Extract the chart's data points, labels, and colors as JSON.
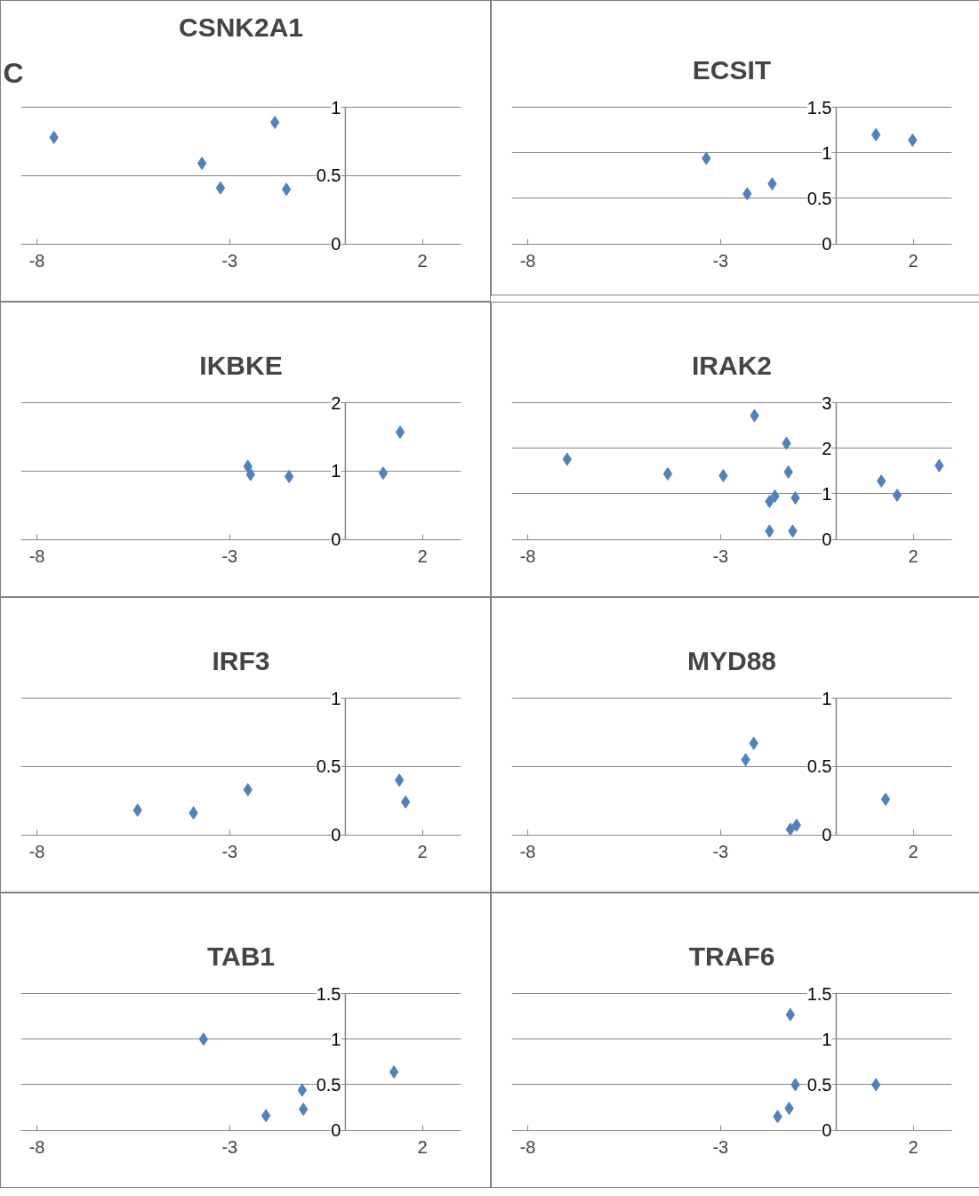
{
  "chart_data": [
    {
      "type": "scatter",
      "title": "CSNK2A1",
      "annotations": [
        "C"
      ],
      "color": "#4f81bd",
      "marker": "diamond",
      "grid": "y",
      "xlim": [
        -8,
        3
      ],
      "xticks": [
        -8,
        -3,
        2
      ],
      "ylim": [
        0,
        1
      ],
      "yticks": [
        0,
        0.5,
        1
      ],
      "x": [
        -7.56,
        -3.72,
        -3.24,
        -1.83,
        -1.53
      ],
      "values": [
        0.78,
        0.59,
        0.41,
        0.89,
        0.4
      ]
    },
    {
      "type": "scatter",
      "title": "ECSIT",
      "color": "#4f81bd",
      "marker": "diamond",
      "grid": "y",
      "xlim": [
        -8,
        3
      ],
      "xticks": [
        -8,
        -3,
        2
      ],
      "ylim": [
        0,
        1.5
      ],
      "yticks": [
        0,
        0.5,
        1,
        1.5
      ],
      "x": [
        -3.37,
        -2.31,
        -1.66,
        1.03,
        1.98
      ],
      "values": [
        0.94,
        0.55,
        0.66,
        1.2,
        1.14
      ]
    },
    {
      "type": "scatter",
      "title": "IKBKE",
      "color": "#4f81bd",
      "marker": "diamond",
      "grid": "y",
      "xlim": [
        -8,
        3
      ],
      "xticks": [
        -8,
        -3,
        2
      ],
      "ylim": [
        0,
        2
      ],
      "yticks": [
        0,
        1,
        2
      ],
      "x": [
        -2.53,
        -2.46,
        -1.46,
        0.98,
        1.42
      ],
      "values": [
        1.07,
        0.95,
        0.92,
        0.97,
        1.57
      ]
    },
    {
      "type": "scatter",
      "title": "IRAK2",
      "color": "#4f81bd",
      "marker": "diamond",
      "grid": "y",
      "xlim": [
        -8,
        3
      ],
      "xticks": [
        -8,
        -3,
        2
      ],
      "ylim": [
        0,
        3
      ],
      "yticks": [
        0,
        1,
        2,
        3
      ],
      "x": [
        -6.98,
        -4.37,
        -2.93,
        -2.12,
        -1.29,
        -1.24,
        -1.59,
        -1.73,
        -1.06,
        -1.73,
        -1.13,
        1.17,
        1.58,
        2.67
      ],
      "values": [
        1.76,
        1.44,
        1.4,
        2.72,
        2.11,
        1.48,
        0.95,
        0.83,
        0.91,
        0.18,
        0.18,
        1.28,
        0.97,
        1.62
      ]
    },
    {
      "type": "scatter",
      "title": "IRF3",
      "color": "#4f81bd",
      "marker": "diamond",
      "grid": "y",
      "xlim": [
        -8,
        3
      ],
      "xticks": [
        -8,
        -3,
        2
      ],
      "ylim": [
        0,
        1
      ],
      "yticks": [
        0,
        0.5,
        1
      ],
      "x": [
        -5.39,
        -3.94,
        -2.53,
        1.4,
        1.56
      ],
      "values": [
        0.18,
        0.16,
        0.33,
        0.4,
        0.24
      ]
    },
    {
      "type": "scatter",
      "title": "MYD88",
      "color": "#4f81bd",
      "marker": "diamond",
      "grid": "y",
      "xlim": [
        -8,
        3
      ],
      "xticks": [
        -8,
        -3,
        2
      ],
      "ylim": [
        0,
        1
      ],
      "yticks": [
        0,
        0.5,
        1
      ],
      "x": [
        -2.14,
        -2.35,
        -1.19,
        -1.03,
        1.28
      ],
      "values": [
        0.67,
        0.55,
        0.04,
        0.07,
        0.26
      ]
    },
    {
      "type": "scatter",
      "title": "TAB1",
      "color": "#4f81bd",
      "marker": "diamond",
      "grid": "y",
      "xlim": [
        -8,
        3
      ],
      "xticks": [
        -8,
        -3,
        2
      ],
      "ylim": [
        0,
        1.5
      ],
      "yticks": [
        0,
        0.5,
        1,
        1.5
      ],
      "x": [
        -3.68,
        -2.06,
        -1.12,
        -1.09,
        1.26
      ],
      "values": [
        1.0,
        0.16,
        0.44,
        0.23,
        0.64
      ]
    },
    {
      "type": "scatter",
      "title": "TRAF6",
      "color": "#4f81bd",
      "marker": "diamond",
      "grid": "y",
      "xlim": [
        -8,
        3
      ],
      "xticks": [
        -8,
        -3,
        2
      ],
      "ylim": [
        0,
        1.5
      ],
      "yticks": [
        0,
        0.5,
        1,
        1.5
      ],
      "x": [
        -1.19,
        -1.06,
        -1.22,
        -1.52,
        1.03
      ],
      "values": [
        1.27,
        0.5,
        0.24,
        0.15,
        0.5
      ]
    }
  ]
}
